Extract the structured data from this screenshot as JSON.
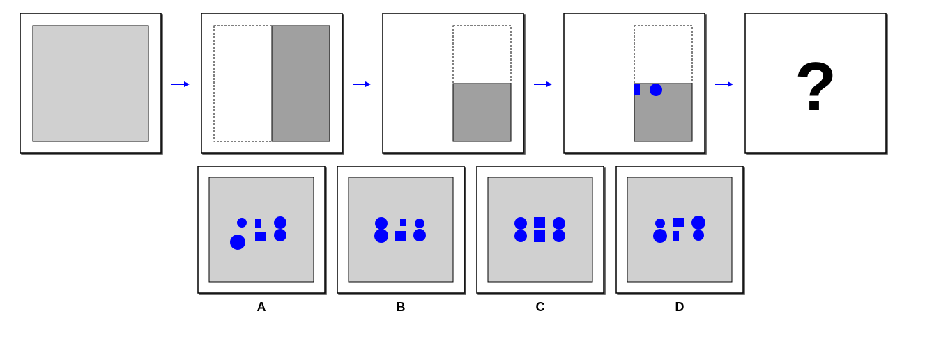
{
  "question_mark": "?",
  "options": [
    {
      "label": "A"
    },
    {
      "label": "B"
    },
    {
      "label": "C"
    },
    {
      "label": "D"
    }
  ],
  "colors": {
    "paper": "#d0d0d0",
    "folded_paper": "#a0a0a0",
    "holes": "#0000ff",
    "arrows": "#0000ff",
    "frame": "#000000",
    "background": "#ffffff"
  }
}
